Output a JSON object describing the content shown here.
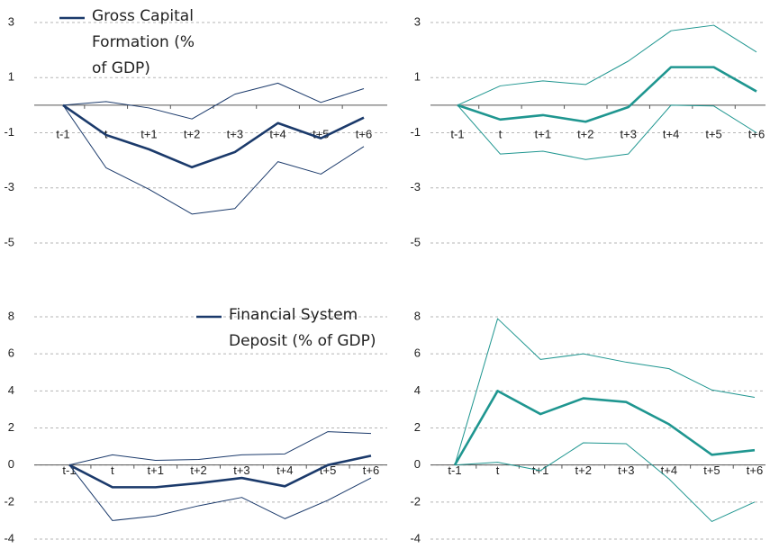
{
  "chart_data": [
    {
      "type": "line",
      "categories": [
        "t-1",
        "t",
        "t+1",
        "t+2",
        "t+3",
        "t+4",
        "t+5",
        "t+6"
      ],
      "ylim": [
        -5,
        3
      ],
      "yticks": [
        -5,
        -3,
        -1,
        1,
        3
      ],
      "grid": true,
      "series": [
        {
          "name": "Gross Capital Formation (% of GDP)",
          "color": "#1b3a6b",
          "values": [
            0,
            -1.08,
            -1.6,
            -2.25,
            -1.7,
            -0.65,
            -1.2,
            -0.45
          ]
        },
        {
          "color": "#1b3a6b",
          "values": [
            0,
            0.13,
            -0.1,
            -0.5,
            0.4,
            0.8,
            0.1,
            0.6
          ]
        },
        {
          "color": "#1b3a6b",
          "values": [
            0,
            -2.27,
            -3.05,
            -3.95,
            -3.75,
            -2.05,
            -2.5,
            -1.5
          ]
        }
      ]
    },
    {
      "type": "line",
      "categories": [
        "t-1",
        "t",
        "t+1",
        "t+2",
        "t+3",
        "t+4",
        "t+5",
        "t+6"
      ],
      "ylim": [
        -5,
        3
      ],
      "yticks": [
        -5,
        -3,
        -1,
        1,
        3
      ],
      "grid": true,
      "series": [
        {
          "color": "#1f9690",
          "values": [
            0,
            -0.52,
            -0.36,
            -0.6,
            -0.07,
            1.38,
            1.38,
            0.5
          ]
        },
        {
          "color": "#1f9690",
          "values": [
            0,
            0.7,
            0.88,
            0.75,
            1.6,
            2.7,
            2.9,
            1.93
          ]
        },
        {
          "color": "#1f9690",
          "values": [
            0,
            -1.77,
            -1.67,
            -1.97,
            -1.77,
            0,
            -0.03,
            -1.0
          ]
        }
      ]
    },
    {
      "type": "line",
      "categories": [
        "t-1",
        "t",
        "t+1",
        "t+2",
        "t+3",
        "t+4",
        "t+5",
        "t+6"
      ],
      "ylim": [
        -4,
        8
      ],
      "yticks": [
        -4,
        -2,
        0,
        2,
        4,
        6,
        8
      ],
      "grid": true,
      "series": [
        {
          "name": "Financial System Deposit (% of GDP)",
          "color": "#1b3a6b",
          "values": [
            0,
            -1.2,
            -1.2,
            -0.98,
            -0.7,
            -1.15,
            0,
            0.5
          ]
        },
        {
          "color": "#1b3a6b",
          "values": [
            0,
            0.55,
            0.25,
            0.3,
            0.55,
            0.6,
            1.8,
            1.7
          ]
        },
        {
          "color": "#1b3a6b",
          "values": [
            0,
            -3.0,
            -2.75,
            -2.2,
            -1.75,
            -2.9,
            -1.9,
            -0.7
          ]
        }
      ]
    },
    {
      "type": "line",
      "categories": [
        "t-1",
        "t",
        "t+1",
        "t+2",
        "t+3",
        "t+4",
        "t+5",
        "t+6"
      ],
      "ylim": [
        -4,
        8
      ],
      "yticks": [
        -4,
        -2,
        0,
        2,
        4,
        6,
        8
      ],
      "grid": true,
      "series": [
        {
          "color": "#1f9690",
          "values": [
            0,
            4.0,
            2.75,
            3.6,
            3.4,
            2.2,
            0.55,
            0.8
          ]
        },
        {
          "color": "#1f9690",
          "values": [
            0,
            7.9,
            5.7,
            6.0,
            5.55,
            5.2,
            4.05,
            3.65
          ]
        },
        {
          "color": "#1f9690",
          "values": [
            0,
            0.15,
            -0.3,
            1.2,
            1.15,
            -0.75,
            -3.05,
            -2.0
          ]
        }
      ]
    }
  ]
}
